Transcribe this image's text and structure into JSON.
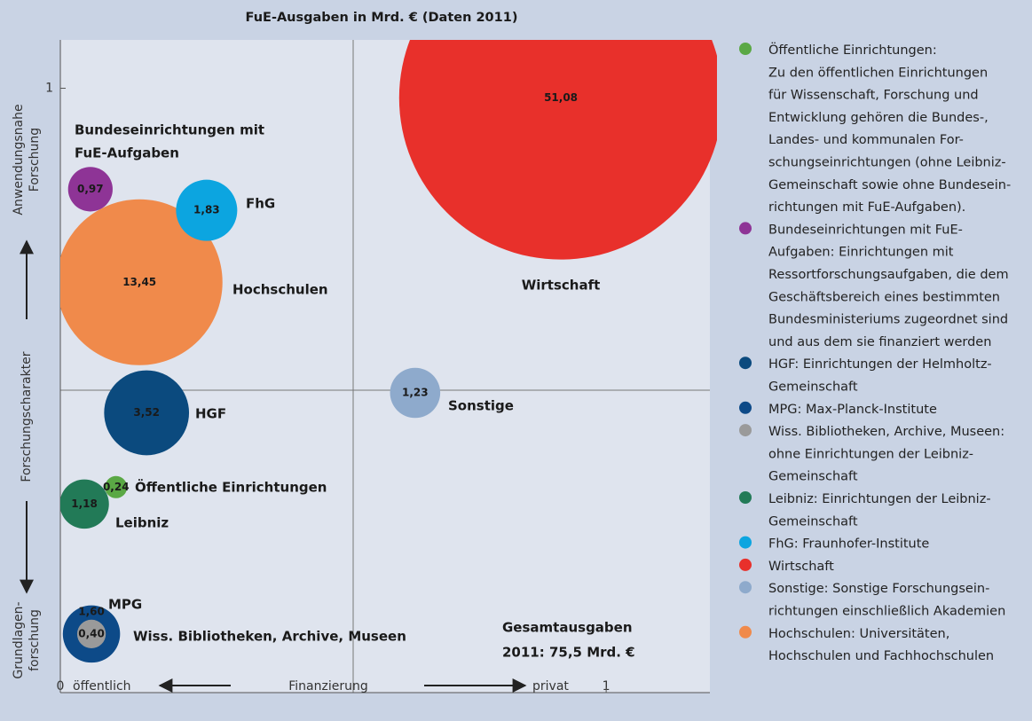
{
  "chart_data": {
    "type": "bubble",
    "title": "FuE-Ausgaben in Mrd. € (Daten 2011)",
    "xlim": [
      0,
      1.19
    ],
    "ylim": [
      0,
      1.08
    ],
    "xticks": [
      0,
      1
    ],
    "yticks": [
      1
    ],
    "y_label_top": [
      "Anwendungsnahe",
      "Forschung"
    ],
    "y_label_middle": "Forschungscharakter",
    "y_label_bottom": [
      "Grundlagen-",
      "forschung"
    ],
    "x_label_left": "öffentlich",
    "x_label_middle": "Finanzierung",
    "x_label_right": "privat",
    "annotation": [
      "Gesamtausgaben",
      "2011: 75,5 Mrd. €"
    ],
    "points": [
      {
        "label": [
          "Wirtschaft"
        ],
        "x": 0.917,
        "y": 0.984,
        "value": 51.08,
        "value_label": "51,08",
        "color": "#e8302b"
      },
      {
        "label": [
          "Hochschulen"
        ],
        "x": 0.145,
        "y": 0.679,
        "value": 13.45,
        "value_label": "13,45",
        "color": "#f08a4b"
      },
      {
        "label": [
          "FhG"
        ],
        "x": 0.268,
        "y": 0.798,
        "value": 1.83,
        "value_label": "1,83",
        "color": "#0ca5e0"
      },
      {
        "label": [
          "Bundeseinrichtungen mit",
          "FuE-Aufgaben"
        ],
        "x": 0.055,
        "y": 0.833,
        "value": 0.97,
        "value_label": "0,97",
        "color": "#8e3496"
      },
      {
        "label": [
          "HGF"
        ],
        "x": 0.158,
        "y": 0.463,
        "value": 3.52,
        "value_label": "3,52",
        "color": "#0b4a7e"
      },
      {
        "label": [
          "Sonstige"
        ],
        "x": 0.65,
        "y": 0.496,
        "value": 1.23,
        "value_label": "1,23",
        "color": "#8eaacc"
      },
      {
        "label": [
          "Öffentliche Einrichtungen"
        ],
        "x": 0.102,
        "y": 0.34,
        "value": 0.24,
        "value_label": "0,24",
        "color": "#5aa845"
      },
      {
        "label": [
          "Leibniz"
        ],
        "x": 0.044,
        "y": 0.312,
        "value": 1.18,
        "value_label": "1,18",
        "color": "#227a57"
      },
      {
        "label": [
          "MPG"
        ],
        "x": 0.057,
        "y": 0.097,
        "value": 1.6,
        "value_label": "1,60",
        "color": "#0d4a88"
      },
      {
        "label": [
          "Wiss. Bibliotheken, Archive, Museen"
        ],
        "x": 0.057,
        "y": 0.097,
        "value": 0.4,
        "value_label": "0,40",
        "color": "#9a9a9a"
      }
    ],
    "legend": [
      {
        "color": "#5aa845",
        "lines": [
          "Öffentliche Einrichtungen:",
          "Zu den öffentlichen Einrichtungen",
          "für Wissenschaft, Forschung und",
          "Entwicklung gehören die Bundes-,",
          "Landes- und kommunalen For-",
          "schungseinrichtungen (ohne Leibniz-",
          "Gemeinschaft sowie ohne Bundesein-",
          "richtungen mit FuE-Aufgaben)."
        ]
      },
      {
        "color": "#8e3496",
        "lines": [
          "Bundeseinrichtungen mit FuE-",
          "Aufgaben: Einrichtungen mit",
          "Ressortforschungsaufgaben, die dem",
          "Geschäftsbereich eines bestimmten",
          "Bundesministeriums zugeordnet sind",
          "und aus dem sie finanziert werden"
        ]
      },
      {
        "color": "#0b4a7e",
        "lines": [
          "HGF: Einrichtungen der Helmholtz-",
          "Gemeinschaft"
        ]
      },
      {
        "color": "#0d4a88",
        "lines": [
          "MPG: Max-Planck-Institute"
        ]
      },
      {
        "color": "#9a9a9a",
        "lines": [
          "Wiss. Bibliotheken, Archive, Museen:",
          "ohne Einrichtungen der Leibniz-",
          "Gemeinschaft"
        ]
      },
      {
        "color": "#227a57",
        "lines": [
          "Leibniz: Einrichtungen der Leibniz-",
          "Gemeinschaft"
        ]
      },
      {
        "color": "#0ca5e0",
        "lines": [
          "FhG: Fraunhofer-Institute"
        ]
      },
      {
        "color": "#e8302b",
        "lines": [
          "Wirtschaft"
        ]
      },
      {
        "color": "#8eaacc",
        "lines": [
          "Sonstige: Sonstige Forschungsein-",
          "richtungen einschließlich Akademien"
        ]
      },
      {
        "color": "#f08a4b",
        "lines": [
          "Hochschulen: Universitäten,",
          "Hochschulen und Fachhochschulen"
        ]
      }
    ]
  }
}
